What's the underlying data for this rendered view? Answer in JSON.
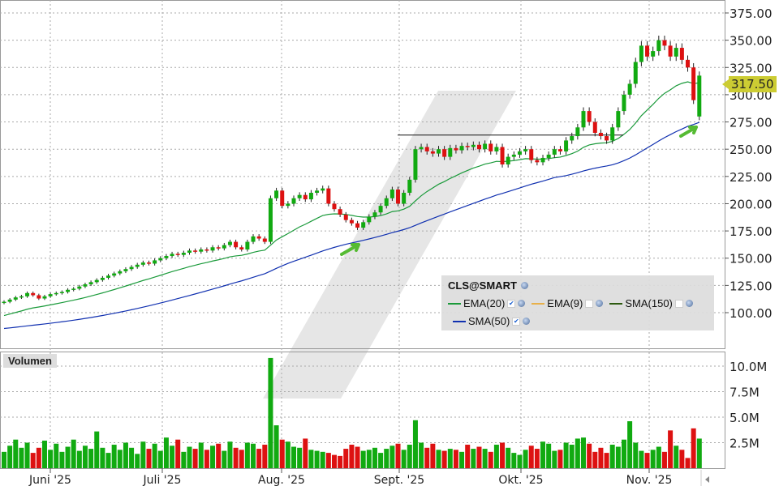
{
  "chart_data": {
    "type": "candlestick",
    "symbol": "CLS@SMART",
    "price_ticks": [
      375,
      350,
      325,
      300,
      275,
      250,
      225,
      200,
      175,
      150,
      125,
      100
    ],
    "price_tick_labels": [
      "375.00",
      "350.00",
      "325.00",
      "300.00",
      "275.00",
      "250.00",
      "225.00",
      "200.00",
      "175.00",
      "150.00",
      "125.00",
      "100.00"
    ],
    "ylim": [
      82,
      388
    ],
    "last_price": "317.50",
    "volume_label": "Volumen",
    "volume_ticks": [
      10,
      7.5,
      5,
      2.5
    ],
    "volume_tick_labels": [
      "10.0M",
      "7.5M",
      "5.0M",
      "2.5M"
    ],
    "months": [
      "Juni '25",
      "Juli '25",
      "Aug. '25",
      "Sept. '25",
      "Okt. '25",
      "Nov. '25"
    ],
    "month_start_index": [
      8,
      28,
      49,
      69,
      90,
      112
    ],
    "closes": [
      110,
      112,
      114,
      115,
      118,
      116,
      113,
      115,
      117,
      118,
      119,
      121,
      122,
      124,
      126,
      128,
      130,
      132,
      134,
      136,
      138,
      140,
      142,
      144,
      146,
      145,
      148,
      150,
      152,
      154,
      153,
      155,
      157,
      156,
      158,
      157,
      160,
      159,
      162,
      165,
      160,
      158,
      165,
      170,
      168,
      165,
      205,
      212,
      198,
      200,
      205,
      208,
      204,
      210,
      212,
      214,
      200,
      195,
      190,
      185,
      182,
      178,
      183,
      188,
      192,
      198,
      205,
      213,
      200,
      210,
      222,
      250,
      252,
      248,
      246,
      250,
      243,
      251,
      249,
      253,
      252,
      254,
      250,
      255,
      248,
      252,
      236,
      243,
      245,
      248,
      250,
      240,
      238,
      242,
      245,
      250,
      248,
      258,
      262,
      270,
      285,
      275,
      265,
      262,
      258,
      270,
      285,
      300,
      310,
      330,
      345,
      335,
      340,
      350,
      345,
      335,
      343,
      332,
      325,
      295,
      317.5
    ],
    "last_open": 280,
    "volumes": [
      1.6,
      2.2,
      2.8,
      2.0,
      2.5,
      1.5,
      2.0,
      2.7,
      1.8,
      2.4,
      1.6,
      2.1,
      2.8,
      1.7,
      2.2,
      1.9,
      3.6,
      2.0,
      1.5,
      2.3,
      1.8,
      2.5,
      2.0,
      1.4,
      2.6,
      1.9,
      2.4,
      1.7,
      3.0,
      2.2,
      2.8,
      1.6,
      2.1,
      1.9,
      2.5,
      1.8,
      2.2,
      2.4,
      1.7,
      2.6,
      2.0,
      1.8,
      2.5,
      2.4,
      1.9,
      2.3,
      10.8,
      4.2,
      2.8,
      2.6,
      2.1,
      2.0,
      2.9,
      1.8,
      1.7,
      1.6,
      1.5,
      1.3,
      1.2,
      1.9,
      2.3,
      2.1,
      1.7,
      1.8,
      2.0,
      1.5,
      1.9,
      2.2,
      2.4,
      1.8,
      2.3,
      4.7,
      2.5,
      2.0,
      2.4,
      1.8,
      1.7,
      1.9,
      1.8,
      1.6,
      2.3,
      1.9,
      2.1,
      1.9,
      1.6,
      2.3,
      2.5,
      2.0,
      1.5,
      1.3,
      1.8,
      2.2,
      1.9,
      2.6,
      2.4,
      1.7,
      1.8,
      2.5,
      2.3,
      2.9,
      3.0,
      2.4,
      1.6,
      2.0,
      1.5,
      2.3,
      2.1,
      2.8,
      4.6,
      2.5,
      1.7,
      1.5,
      1.8,
      2.1,
      1.6,
      3.7,
      2.2,
      1.8,
      1.0,
      3.9,
      2.9
    ],
    "indicators": [
      {
        "name": "EMA(20)",
        "color": "#1a9a3a",
        "checked": true
      },
      {
        "name": "EMA(9)",
        "color": "#e8b04a",
        "checked": false
      },
      {
        "name": "SMA(150)",
        "color": "#2d5a10",
        "checked": false
      },
      {
        "name": "SMA(50)",
        "color": "#1030b0",
        "checked": true
      }
    ],
    "resistance_level": 263,
    "up_color": "#11aa11",
    "down_color": "#dd1111"
  }
}
